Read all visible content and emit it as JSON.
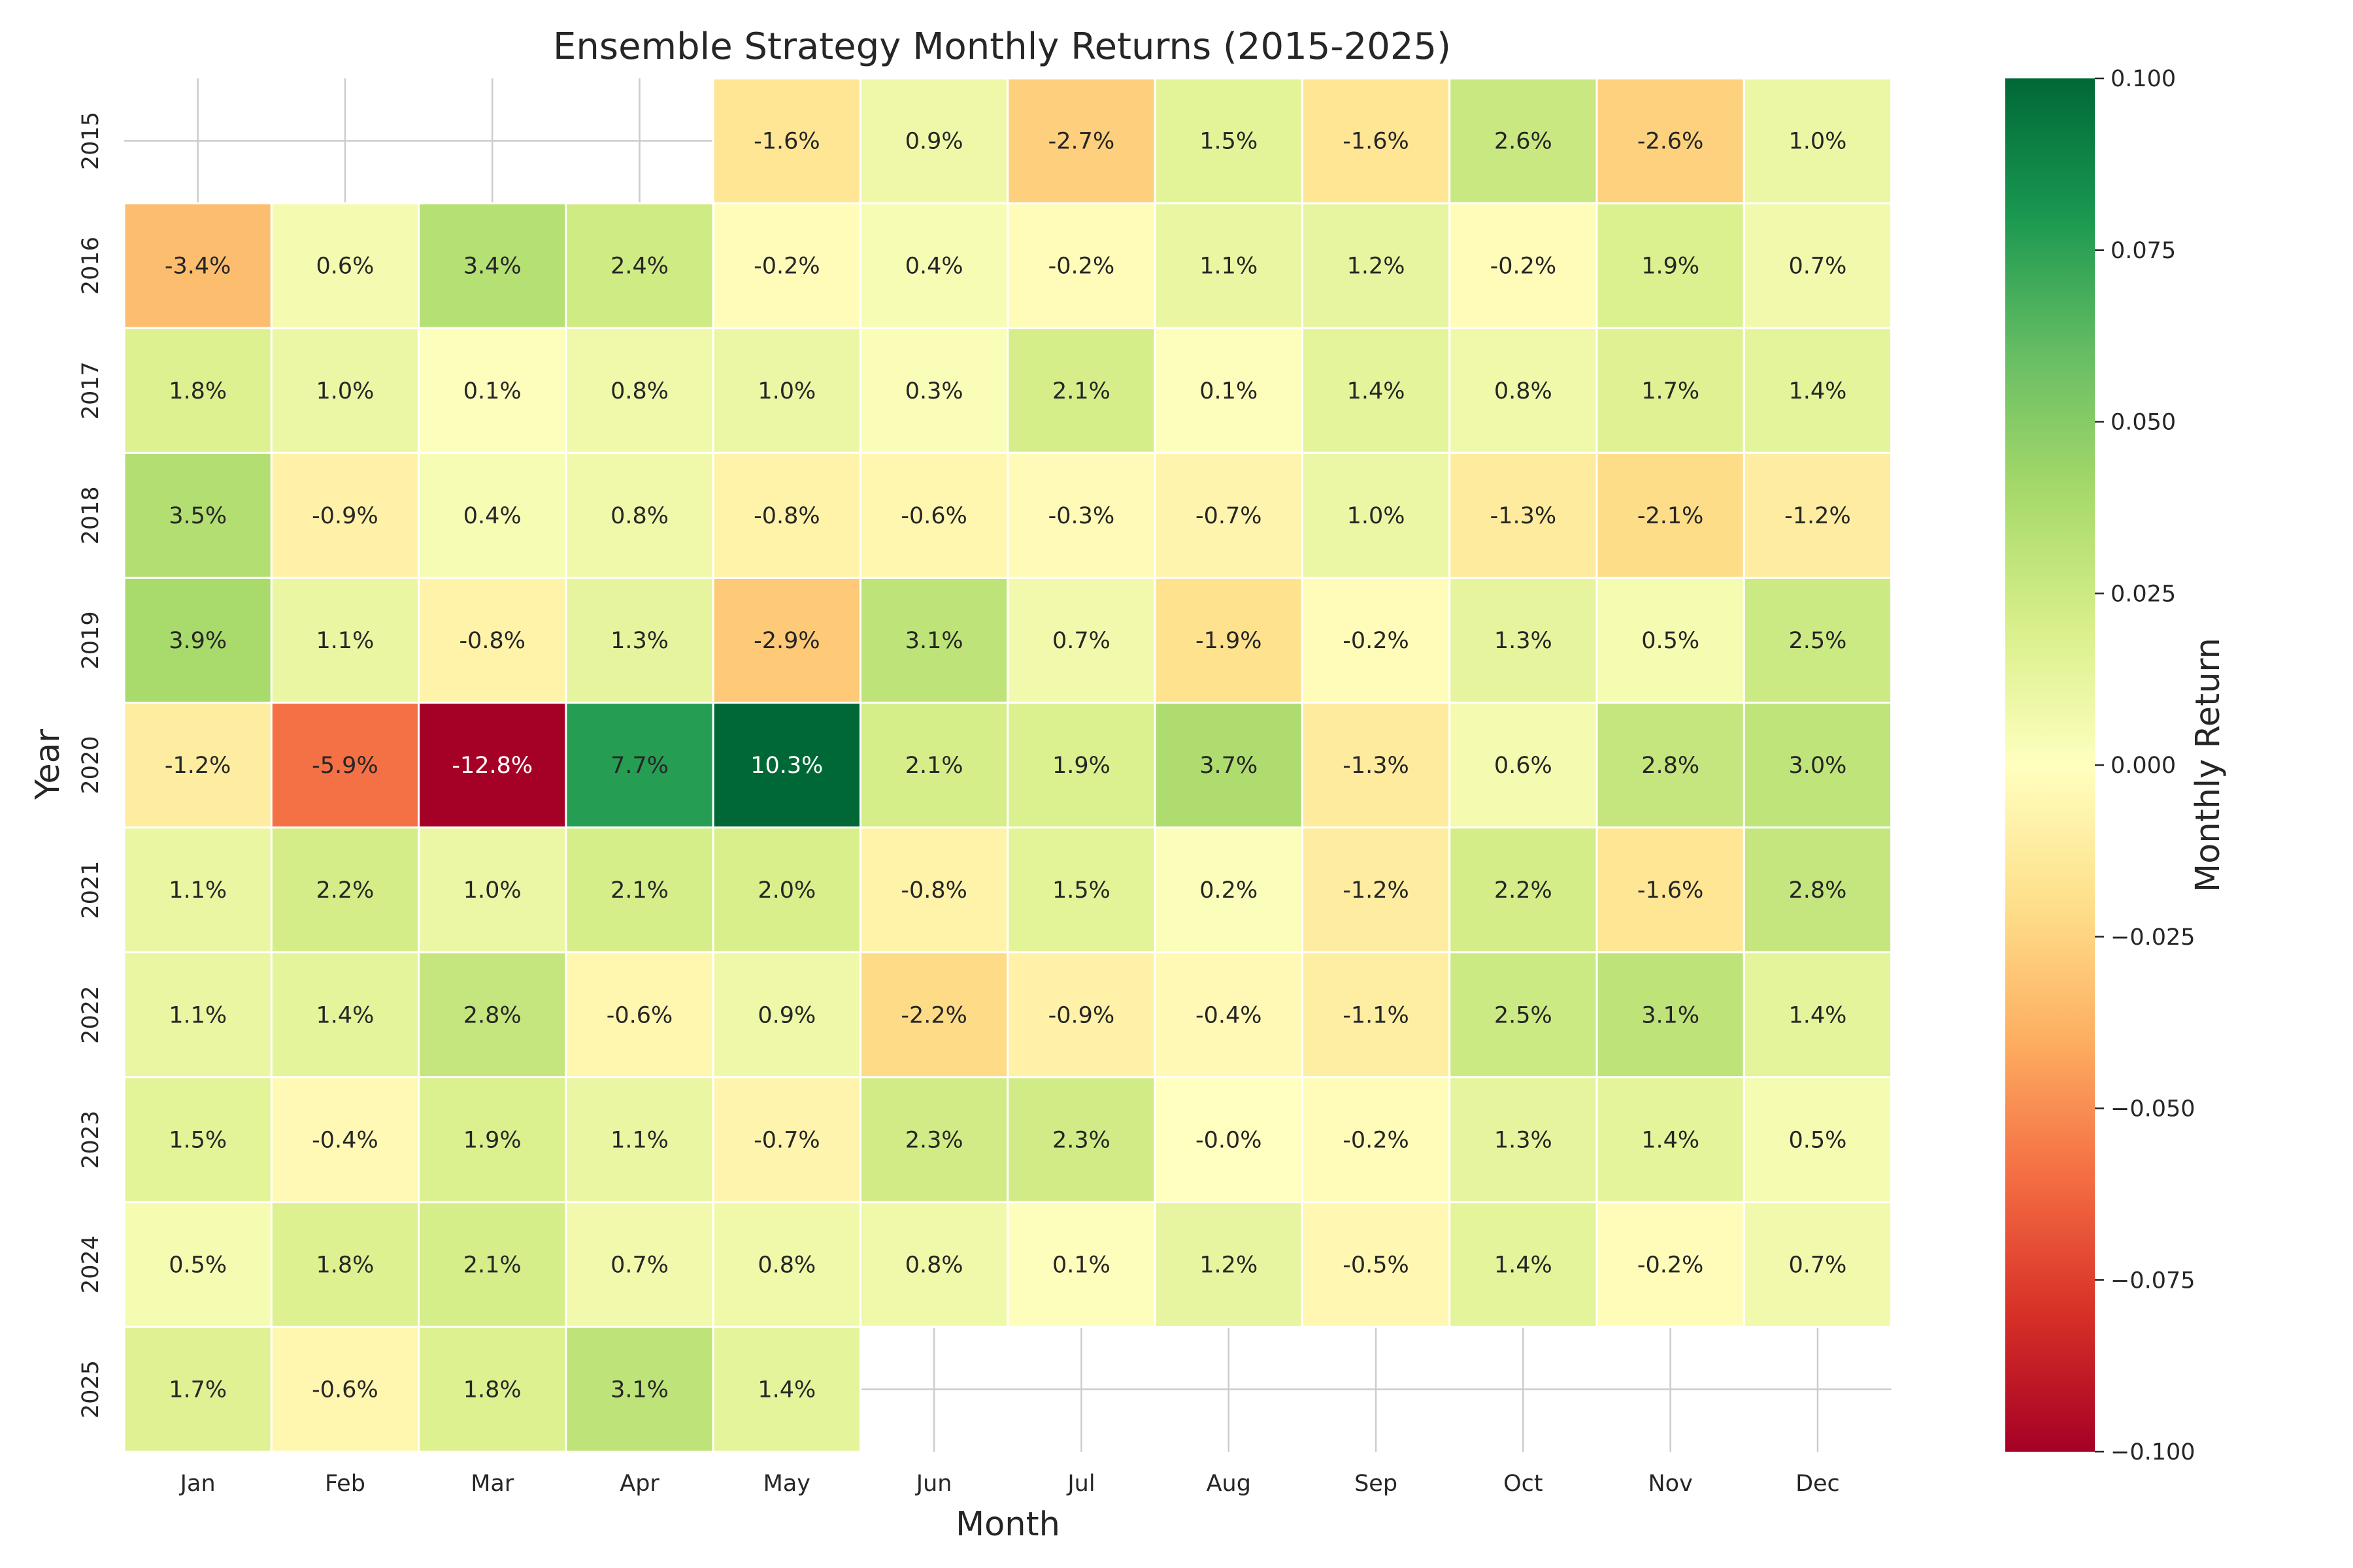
{
  "chart_data": {
    "type": "heatmap",
    "title": "Ensemble Strategy Monthly Returns (2015-2025)",
    "xlabel": "Month",
    "ylabel": "Year",
    "colorbar_label": "Monthly Return",
    "colormap": "RdYlGn",
    "vmin": -0.1,
    "vmax": 0.1,
    "colorbar_ticks": [
      "0.100",
      "0.075",
      "0.050",
      "0.025",
      "0.000",
      "−0.025",
      "−0.050",
      "−0.075",
      "−0.100"
    ],
    "colorbar_tick_values": [
      0.1,
      0.075,
      0.05,
      0.025,
      0.0,
      -0.025,
      -0.05,
      -0.075,
      -0.1
    ],
    "months": [
      "Jan",
      "Feb",
      "Mar",
      "Apr",
      "May",
      "Jun",
      "Jul",
      "Aug",
      "Sep",
      "Oct",
      "Nov",
      "Dec"
    ],
    "years": [
      "2015",
      "2016",
      "2017",
      "2018",
      "2019",
      "2020",
      "2021",
      "2022",
      "2023",
      "2024",
      "2025"
    ],
    "values": [
      [
        null,
        null,
        null,
        null,
        -0.016,
        0.009,
        -0.027,
        0.015,
        -0.016,
        0.026,
        -0.026,
        0.01
      ],
      [
        -0.034,
        0.006,
        0.034,
        0.024,
        -0.002,
        0.004,
        -0.002,
        0.011,
        0.012,
        -0.002,
        0.019,
        0.007
      ],
      [
        0.018,
        0.01,
        0.001,
        0.008,
        0.01,
        0.003,
        0.021,
        0.001,
        0.014,
        0.008,
        0.017,
        0.014
      ],
      [
        0.035,
        -0.009,
        0.004,
        0.008,
        -0.008,
        -0.006,
        -0.003,
        -0.007,
        0.01,
        -0.013,
        -0.021,
        -0.012
      ],
      [
        0.039,
        0.011,
        -0.008,
        0.013,
        -0.029,
        0.031,
        0.007,
        -0.019,
        -0.002,
        0.013,
        0.005,
        0.025
      ],
      [
        -0.012,
        -0.059,
        -0.128,
        0.077,
        0.103,
        0.021,
        0.019,
        0.037,
        -0.013,
        0.006,
        0.028,
        0.03
      ],
      [
        0.011,
        0.022,
        0.01,
        0.021,
        0.02,
        -0.008,
        0.015,
        0.002,
        -0.012,
        0.022,
        -0.016,
        0.028
      ],
      [
        0.011,
        0.014,
        0.028,
        -0.006,
        0.009,
        -0.022,
        -0.009,
        -0.004,
        -0.011,
        0.025,
        0.031,
        0.014
      ],
      [
        0.015,
        -0.004,
        0.019,
        0.011,
        -0.007,
        0.023,
        0.023,
        -0.0001,
        -0.002,
        0.013,
        0.014,
        0.005
      ],
      [
        0.005,
        0.018,
        0.021,
        0.007,
        0.008,
        0.008,
        0.001,
        0.012,
        -0.005,
        0.014,
        -0.002,
        0.007
      ],
      [
        0.017,
        -0.006,
        0.018,
        0.031,
        0.014,
        null,
        null,
        null,
        null,
        null,
        null,
        null
      ]
    ],
    "cell_labels": [
      [
        "",
        "",
        "",
        "",
        "-1.6%",
        "0.9%",
        "-2.7%",
        "1.5%",
        "-1.6%",
        "2.6%",
        "-2.6%",
        "1.0%"
      ],
      [
        "-3.4%",
        "0.6%",
        "3.4%",
        "2.4%",
        "-0.2%",
        "0.4%",
        "-0.2%",
        "1.1%",
        "1.2%",
        "-0.2%",
        "1.9%",
        "0.7%"
      ],
      [
        "1.8%",
        "1.0%",
        "0.1%",
        "0.8%",
        "1.0%",
        "0.3%",
        "2.1%",
        "0.1%",
        "1.4%",
        "0.8%",
        "1.7%",
        "1.4%"
      ],
      [
        "3.5%",
        "-0.9%",
        "0.4%",
        "0.8%",
        "-0.8%",
        "-0.6%",
        "-0.3%",
        "-0.7%",
        "1.0%",
        "-1.3%",
        "-2.1%",
        "-1.2%"
      ],
      [
        "3.9%",
        "1.1%",
        "-0.8%",
        "1.3%",
        "-2.9%",
        "3.1%",
        "0.7%",
        "-1.9%",
        "-0.2%",
        "1.3%",
        "0.5%",
        "2.5%"
      ],
      [
        "-1.2%",
        "-5.9%",
        "-12.8%",
        "7.7%",
        "10.3%",
        "2.1%",
        "1.9%",
        "3.7%",
        "-1.3%",
        "0.6%",
        "2.8%",
        "3.0%"
      ],
      [
        "1.1%",
        "2.2%",
        "1.0%",
        "2.1%",
        "2.0%",
        "-0.8%",
        "1.5%",
        "0.2%",
        "-1.2%",
        "2.2%",
        "-1.6%",
        "2.8%"
      ],
      [
        "1.1%",
        "1.4%",
        "2.8%",
        "-0.6%",
        "0.9%",
        "-2.2%",
        "-0.9%",
        "-0.4%",
        "-1.1%",
        "2.5%",
        "3.1%",
        "1.4%"
      ],
      [
        "1.5%",
        "-0.4%",
        "1.9%",
        "1.1%",
        "-0.7%",
        "2.3%",
        "2.3%",
        "-0.0%",
        "-0.2%",
        "1.3%",
        "1.4%",
        "0.5%"
      ],
      [
        "0.5%",
        "1.8%",
        "2.1%",
        "0.7%",
        "0.8%",
        "0.8%",
        "0.1%",
        "1.2%",
        "-0.5%",
        "1.4%",
        "-0.2%",
        "0.7%"
      ],
      [
        "1.7%",
        "-0.6%",
        "1.8%",
        "3.1%",
        "1.4%",
        "",
        "",
        "",
        "",
        "",
        "",
        ""
      ]
    ],
    "grid": true,
    "legend": "colorbar-right"
  }
}
